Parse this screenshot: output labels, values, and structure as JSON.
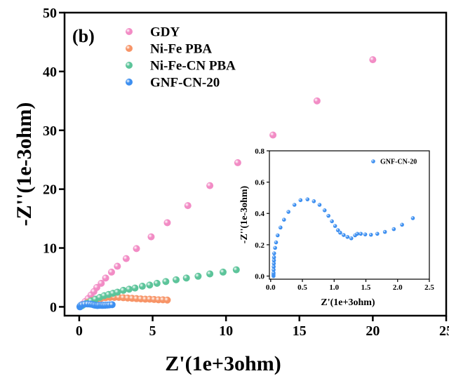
{
  "chart_data": [
    {
      "type": "scatter",
      "panel_label": "(b)",
      "xlabel": "Z'(1e+3ohm)",
      "ylabel": "-Z''(1e-3ohm)",
      "xlim": [
        -1,
        25
      ],
      "ylim": [
        -1.5,
        50
      ],
      "xticks": [
        0,
        5,
        10,
        15,
        20,
        25
      ],
      "yticks": [
        0,
        10,
        20,
        30,
        40,
        50
      ],
      "legend_position": "top-left",
      "series": [
        {
          "name": "GDY",
          "color": "#f28cc5",
          "points": [
            [
              0.2,
              0.4
            ],
            [
              0.4,
              0.9
            ],
            [
              0.6,
              1.4
            ],
            [
              0.8,
              2.0
            ],
            [
              1.0,
              2.6
            ],
            [
              1.2,
              3.3
            ],
            [
              1.5,
              4.0
            ],
            [
              1.8,
              4.9
            ],
            [
              2.2,
              5.9
            ],
            [
              2.6,
              6.9
            ],
            [
              3.2,
              8.2
            ],
            [
              3.9,
              9.9
            ],
            [
              4.9,
              11.9
            ],
            [
              6.0,
              14.3
            ],
            [
              7.4,
              17.2
            ],
            [
              8.9,
              20.6
            ],
            [
              10.8,
              24.5
            ],
            [
              13.2,
              29.2
            ],
            [
              16.2,
              35.0
            ],
            [
              20.0,
              42.0
            ]
          ]
        },
        {
          "name": "Ni-Fe PBA",
          "color": "#f79467",
          "points": [
            [
              0.3,
              0.4
            ],
            [
              0.6,
              0.8
            ],
            [
              0.9,
              1.1
            ],
            [
              1.2,
              1.3
            ],
            [
              1.5,
              1.45
            ],
            [
              1.8,
              1.55
            ],
            [
              2.1,
              1.6
            ],
            [
              2.4,
              1.6
            ],
            [
              2.7,
              1.6
            ],
            [
              3.0,
              1.55
            ],
            [
              3.3,
              1.5
            ],
            [
              3.6,
              1.45
            ],
            [
              3.9,
              1.4
            ],
            [
              4.2,
              1.35
            ],
            [
              4.5,
              1.3
            ],
            [
              4.8,
              1.3
            ],
            [
              5.1,
              1.25
            ],
            [
              5.4,
              1.2
            ],
            [
              5.7,
              1.2
            ],
            [
              6.0,
              1.15
            ]
          ]
        },
        {
          "name": "Ni-Fe-CN PBA",
          "color": "#5cc49a",
          "points": [
            [
              0.2,
              0.2
            ],
            [
              0.5,
              0.6
            ],
            [
              0.8,
              1.0
            ],
            [
              1.1,
              1.3
            ],
            [
              1.4,
              1.6
            ],
            [
              1.7,
              1.9
            ],
            [
              2.0,
              2.1
            ],
            [
              2.3,
              2.3
            ],
            [
              2.6,
              2.5
            ],
            [
              3.0,
              2.8
            ],
            [
              3.4,
              3.0
            ],
            [
              3.8,
              3.2
            ],
            [
              4.3,
              3.5
            ],
            [
              4.8,
              3.7
            ],
            [
              5.3,
              4.0
            ],
            [
              5.9,
              4.3
            ],
            [
              6.6,
              4.6
            ],
            [
              7.3,
              4.9
            ],
            [
              8.1,
              5.2
            ],
            [
              8.9,
              5.6
            ],
            [
              9.8,
              5.9
            ],
            [
              10.7,
              6.3
            ]
          ]
        },
        {
          "name": "GNF-CN-20",
          "color": "#3d8ff0",
          "points": [
            [
              0.05,
              0.0
            ],
            [
              0.06,
              0.1
            ],
            [
              0.11,
              0.26
            ],
            [
              0.21,
              0.36
            ],
            [
              0.38,
              0.46
            ],
            [
              0.58,
              0.49
            ],
            [
              0.77,
              0.46
            ],
            [
              0.91,
              0.39
            ],
            [
              1.02,
              0.32
            ],
            [
              1.1,
              0.28
            ],
            [
              1.21,
              0.25
            ],
            [
              1.27,
              0.24
            ],
            [
              1.36,
              0.27
            ],
            [
              1.49,
              0.27
            ],
            [
              1.58,
              0.26
            ],
            [
              1.68,
              0.27
            ],
            [
              1.8,
              0.28
            ],
            [
              1.94,
              0.3
            ],
            [
              2.07,
              0.33
            ],
            [
              2.24,
              0.37
            ]
          ]
        }
      ]
    },
    {
      "type": "scatter",
      "inset": true,
      "xlabel": "Z'(1e+3ohm)",
      "ylabel": "-Z''(1e-3ohm)",
      "xlim": [
        -0.02,
        2.5
      ],
      "ylim": [
        -0.02,
        0.8
      ],
      "xticks": [
        0.0,
        0.5,
        1.0,
        1.5,
        2.0,
        2.5
      ],
      "yticks": [
        0.0,
        0.2,
        0.4,
        0.6,
        0.8
      ],
      "legend_position": "top-right",
      "series": [
        {
          "name": "GNF-CN-20",
          "color": "#3d8ff0",
          "points": [
            [
              0.045,
              0.0
            ],
            [
              0.045,
              0.01
            ],
            [
              0.046,
              0.02
            ],
            [
              0.047,
              0.04
            ],
            [
              0.048,
              0.06
            ],
            [
              0.05,
              0.08
            ],
            [
              0.052,
              0.1
            ],
            [
              0.053,
              0.12
            ],
            [
              0.055,
              0.145
            ],
            [
              0.07,
              0.18
            ],
            [
              0.085,
              0.215
            ],
            [
              0.11,
              0.26
            ],
            [
              0.155,
              0.31
            ],
            [
              0.21,
              0.36
            ],
            [
              0.28,
              0.41
            ],
            [
              0.375,
              0.455
            ],
            [
              0.47,
              0.485
            ],
            [
              0.58,
              0.49
            ],
            [
              0.68,
              0.478
            ],
            [
              0.77,
              0.455
            ],
            [
              0.85,
              0.42
            ],
            [
              0.91,
              0.385
            ],
            [
              0.965,
              0.35
            ],
            [
              1.015,
              0.32
            ],
            [
              1.06,
              0.293
            ],
            [
              1.095,
              0.277
            ],
            [
              1.15,
              0.262
            ],
            [
              1.21,
              0.25
            ],
            [
              1.27,
              0.241
            ],
            [
              1.33,
              0.26
            ],
            [
              1.365,
              0.27
            ],
            [
              1.42,
              0.27
            ],
            [
              1.49,
              0.266
            ],
            [
              1.58,
              0.264
            ],
            [
              1.68,
              0.27
            ],
            [
              1.8,
              0.282
            ],
            [
              1.94,
              0.3
            ],
            [
              2.07,
              0.328
            ],
            [
              2.24,
              0.37
            ]
          ]
        }
      ]
    }
  ]
}
